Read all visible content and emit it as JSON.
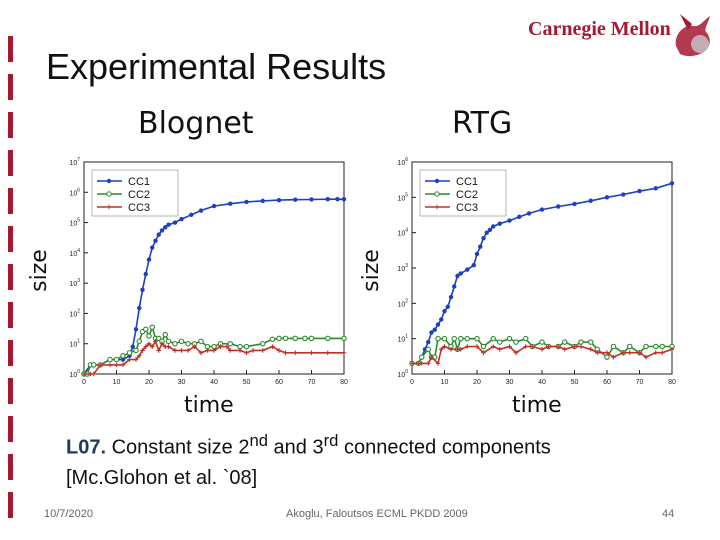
{
  "slide": {
    "title": "Experimental Results",
    "logo_text": "Carnegie Mellon",
    "caption_bold": "L07.",
    "caption_pre": " Constant size 2",
    "caption_sup1": "nd",
    "caption_mid": " and 3",
    "caption_sup2": "rd",
    "caption_post": " connected components",
    "caption_line2": "[Mc.Glohon et al. `08]",
    "footer_date": "10/7/2020",
    "footer_center": "Akoglu, Faloutsos ECML PKDD 2009",
    "footer_page": "44",
    "accent_color": "#a71930"
  },
  "chart_data": [
    {
      "type": "line",
      "title": "Blognet",
      "xlabel": "time",
      "ylabel": "size",
      "xlim": [
        0,
        80
      ],
      "ylim_log10": [
        0,
        7
      ],
      "yscale": "log",
      "xticks": [
        "0",
        "10",
        "20",
        "30",
        "40",
        "50",
        "60",
        "70",
        "80"
      ],
      "yticks": [
        "10^0",
        "10^1",
        "10^2",
        "10^3",
        "10^4",
        "10^5",
        "10^6",
        "10^7"
      ],
      "legend": "top-left",
      "series": [
        {
          "name": "CC1",
          "color": "#1f3fbf",
          "marker": "dot",
          "x": [
            0,
            2,
            5,
            8,
            10,
            12,
            14,
            15,
            16,
            17,
            18,
            19,
            20,
            21,
            22,
            23,
            24,
            25,
            26,
            28,
            30,
            33,
            36,
            40,
            45,
            50,
            55,
            60,
            65,
            70,
            75,
            78,
            80
          ],
          "y": [
            1,
            2,
            2,
            3,
            3,
            3,
            4,
            8,
            30,
            150,
            600,
            2000,
            6000,
            15000,
            25000,
            40000,
            55000,
            70000,
            85000,
            100000,
            130000,
            180000,
            250000,
            350000,
            420000,
            480000,
            520000,
            550000,
            570000,
            580000,
            590000,
            590000,
            590000
          ]
        },
        {
          "name": "CC2",
          "color": "#2e8b2e",
          "marker": "circle",
          "x": [
            0,
            1,
            2,
            3,
            5,
            8,
            10,
            12,
            14,
            16,
            17,
            18,
            19,
            20,
            21,
            22,
            23,
            24,
            25,
            26,
            28,
            30,
            32,
            34,
            36,
            38,
            40,
            42,
            45,
            48,
            50,
            55,
            58,
            60,
            62,
            65,
            68,
            70,
            75,
            80
          ],
          "y": [
            1,
            1,
            2,
            2,
            2,
            3,
            3,
            4,
            5,
            6,
            12,
            25,
            30,
            18,
            35,
            15,
            15,
            12,
            20,
            12,
            10,
            12,
            10,
            10,
            12,
            8,
            8,
            10,
            10,
            8,
            8,
            10,
            14,
            15,
            15,
            15,
            15,
            15,
            15,
            15
          ]
        },
        {
          "name": "CC3",
          "color": "#c0302b",
          "marker": "plus",
          "x": [
            0,
            2,
            3,
            5,
            8,
            10,
            12,
            14,
            16,
            17,
            18,
            19,
            20,
            21,
            22,
            23,
            24,
            25,
            26,
            28,
            30,
            32,
            34,
            36,
            38,
            40,
            42,
            44,
            45,
            48,
            50,
            52,
            55,
            58,
            60,
            62,
            65,
            70,
            75,
            80
          ],
          "y": [
            1,
            1,
            1,
            2,
            2,
            2,
            2,
            3,
            3,
            4,
            6,
            8,
            10,
            8,
            12,
            6,
            10,
            8,
            8,
            6,
            6,
            6,
            8,
            5,
            6,
            6,
            8,
            8,
            6,
            6,
            5,
            6,
            6,
            8,
            6,
            5,
            5,
            5,
            5,
            5
          ]
        }
      ]
    },
    {
      "type": "line",
      "title": "RTG",
      "xlabel": "time",
      "ylabel": "size",
      "xlim": [
        0,
        80
      ],
      "ylim_log10": [
        0,
        6
      ],
      "yscale": "log",
      "xticks": [
        "0",
        "10",
        "20",
        "30",
        "40",
        "50",
        "60",
        "70",
        "80"
      ],
      "yticks": [
        "10^0",
        "10^1",
        "10^2",
        "10^3",
        "10^4",
        "10^5",
        "10^6"
      ],
      "legend": "top-left",
      "series": [
        {
          "name": "CC1",
          "color": "#1f3fbf",
          "marker": "dot",
          "x": [
            0,
            2,
            3,
            4,
            5,
            6,
            7,
            8,
            9,
            10,
            11,
            12,
            13,
            14,
            15,
            17,
            19,
            20,
            21,
            22,
            23,
            24,
            25,
            27,
            30,
            33,
            36,
            40,
            45,
            50,
            55,
            60,
            65,
            70,
            75,
            80
          ],
          "y": [
            2,
            2,
            3,
            5,
            8,
            15,
            18,
            25,
            35,
            60,
            80,
            150,
            300,
            600,
            700,
            900,
            1200,
            2500,
            4000,
            7000,
            10000,
            12000,
            15000,
            18000,
            22000,
            28000,
            35000,
            45000,
            55000,
            65000,
            80000,
            100000,
            120000,
            150000,
            180000,
            250000
          ]
        },
        {
          "name": "CC2",
          "color": "#2e8b2e",
          "marker": "circle",
          "x": [
            0,
            2,
            3,
            5,
            6,
            7,
            8,
            10,
            12,
            13,
            14,
            15,
            17,
            20,
            22,
            25,
            27,
            30,
            32,
            35,
            37,
            40,
            42,
            45,
            47,
            50,
            52,
            55,
            57,
            60,
            62,
            65,
            67,
            70,
            72,
            75,
            77,
            80
          ],
          "y": [
            2,
            2,
            3,
            5,
            3,
            3,
            10,
            10,
            6,
            10,
            5,
            10,
            10,
            10,
            6,
            10,
            8,
            10,
            8,
            10,
            6,
            8,
            6,
            6,
            8,
            6,
            8,
            8,
            5,
            3,
            6,
            4,
            6,
            4,
            6,
            6,
            6,
            6
          ]
        },
        {
          "name": "CC3",
          "color": "#c0302b",
          "marker": "plus",
          "x": [
            0,
            2,
            3,
            5,
            6,
            8,
            9,
            10,
            12,
            14,
            15,
            17,
            20,
            22,
            25,
            27,
            30,
            32,
            35,
            37,
            40,
            42,
            45,
            47,
            50,
            52,
            55,
            57,
            60,
            62,
            65,
            67,
            70,
            72,
            75,
            77,
            80
          ],
          "y": [
            2,
            2,
            2,
            2,
            3,
            2,
            5,
            6,
            5,
            5,
            5,
            6,
            6,
            4,
            6,
            5,
            6,
            4,
            6,
            6,
            5,
            6,
            6,
            5,
            6,
            6,
            5,
            4,
            4,
            3,
            4,
            4,
            4,
            3,
            4,
            4,
            5
          ]
        }
      ]
    }
  ]
}
